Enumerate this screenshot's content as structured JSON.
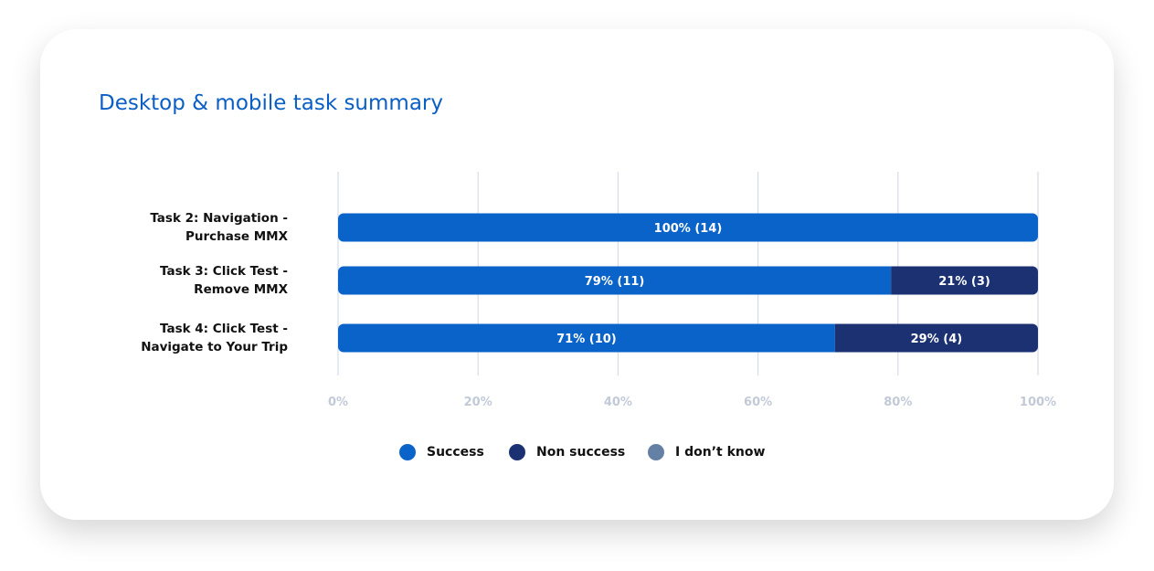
{
  "title": "Desktop & mobile task summary",
  "colors": {
    "title": "#0B5FC4",
    "success": "#0A63C9",
    "non_success": "#1B3172",
    "dont_know": "#6480A5",
    "grid": "#D6DCE8",
    "tick": "#C2CAD8",
    "task_label": "#111111",
    "bar_label": "#FFFFFF"
  },
  "legend": [
    {
      "key": "success",
      "label": "Success"
    },
    {
      "key": "non_success",
      "label": "Non success"
    },
    {
      "key": "dont_know",
      "label": "I don’t know"
    }
  ],
  "chart_data": {
    "type": "bar",
    "orientation": "horizontal",
    "stacked": true,
    "title": "Desktop & mobile task summary",
    "xlabel": "",
    "ylabel": "",
    "xlim": [
      0,
      100
    ],
    "xticks": [
      0,
      20,
      40,
      60,
      80,
      100
    ],
    "xtick_labels": [
      "0%",
      "20%",
      "40%",
      "60%",
      "80%",
      "100%"
    ],
    "grid": true,
    "legend_position": "bottom",
    "categories": [
      [
        "Task 2: Navigation -",
        "Purchase MMX"
      ],
      [
        "Task 3: Click Test -",
        "Remove MMX"
      ],
      [
        "Task 4: Click Test -",
        "Navigate to Your Trip"
      ]
    ],
    "series": [
      {
        "name": "Success",
        "key": "success",
        "values": [
          100,
          79,
          71
        ],
        "labels": [
          "100% (14)",
          "79% (11)",
          "71% (10)"
        ]
      },
      {
        "name": "Non success",
        "key": "non_success",
        "values": [
          0,
          21,
          29
        ],
        "labels": [
          "",
          "21% (3)",
          "29% (4)"
        ]
      },
      {
        "name": "I don’t know",
        "key": "dont_know",
        "values": [
          0,
          0,
          0
        ],
        "labels": [
          "",
          "",
          ""
        ]
      }
    ]
  }
}
